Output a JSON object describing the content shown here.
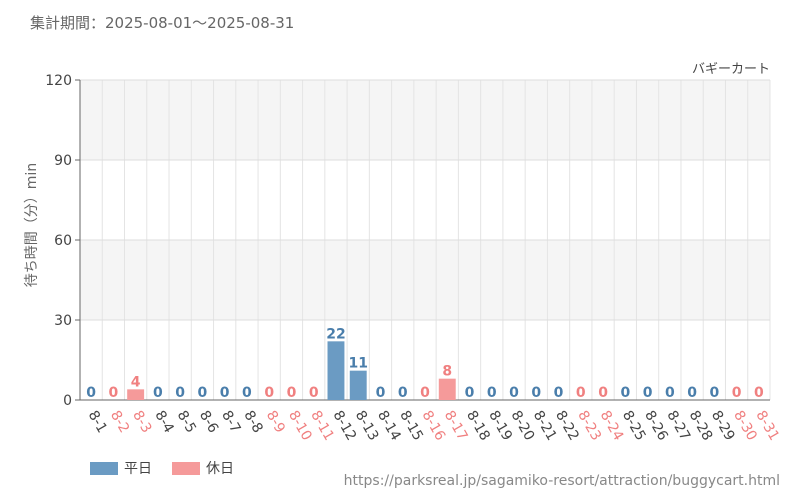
{
  "header": {
    "period_label": "集計期間：2025-08-01～2025-08-31"
  },
  "source_url": "https://parksreal.jp/sagamiko-resort/attraction/buggycart.html",
  "chart_data": {
    "type": "bar",
    "title": "バギーカート",
    "ylabel": "待ち時間（分）min",
    "xlabel": "",
    "ylim": [
      0,
      120
    ],
    "yticks": [
      0,
      30,
      60,
      90,
      120
    ],
    "grid": true,
    "legend_position": "bottom-left",
    "categories": [
      "8-1",
      "8-2",
      "8-3",
      "8-4",
      "8-5",
      "8-6",
      "8-7",
      "8-8",
      "8-9",
      "8-10",
      "8-11",
      "8-12",
      "8-13",
      "8-14",
      "8-15",
      "8-16",
      "8-17",
      "8-18",
      "8-19",
      "8-20",
      "8-21",
      "8-22",
      "8-23",
      "8-24",
      "8-25",
      "8-26",
      "8-27",
      "8-28",
      "8-29",
      "8-30",
      "8-31"
    ],
    "values": [
      0,
      0,
      4,
      0,
      0,
      0,
      0,
      0,
      0,
      0,
      0,
      22,
      11,
      0,
      0,
      0,
      8,
      0,
      0,
      0,
      0,
      0,
      0,
      0,
      0,
      0,
      0,
      0,
      0,
      0,
      0
    ],
    "day_type": [
      "weekday",
      "holiday",
      "holiday",
      "weekday",
      "weekday",
      "weekday",
      "weekday",
      "weekday",
      "holiday",
      "holiday",
      "holiday",
      "weekday",
      "weekday",
      "weekday",
      "weekday",
      "holiday",
      "holiday",
      "weekday",
      "weekday",
      "weekday",
      "weekday",
      "weekday",
      "holiday",
      "holiday",
      "weekday",
      "weekday",
      "weekday",
      "weekday",
      "weekday",
      "holiday",
      "holiday"
    ],
    "series": [
      {
        "key": "weekday",
        "name": "平日",
        "color": "#6b9bc3",
        "label_color": "#4a7eab"
      },
      {
        "key": "holiday",
        "name": "休日",
        "color": "#f59a9a",
        "label_color": "#f08080"
      }
    ]
  }
}
